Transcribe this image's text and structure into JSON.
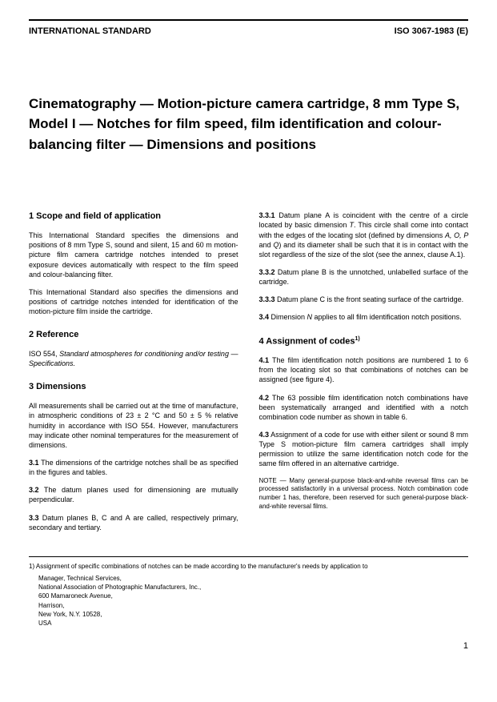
{
  "header": {
    "left": "INTERNATIONAL STANDARD",
    "right": "ISO 3067-1983 (E)"
  },
  "title": "Cinematography — Motion-picture camera cartridge, 8 mm Type S, Model I — Notches for film speed, film identification and colour-balancing filter — Dimensions and positions",
  "left": {
    "s1_heading": "1   Scope and field of application",
    "s1_p1": "This International Standard specifies the dimensions and positions of 8 mm Type S, sound and silent, 15 and 60 m motion-picture film camera cartridge notches intended to preset exposure devices automatically with respect to the film speed and colour-balancing filter.",
    "s1_p2": "This International Standard also specifies the dimensions and positions of cartridge notches intended for identification of the motion-picture film inside the cartridge.",
    "s2_heading": "2   Reference",
    "s2_p1a": "ISO 554, ",
    "s2_p1b": "Standard atmospheres for conditioning and/or testing — Specifications.",
    "s3_heading": "3   Dimensions",
    "s3_p1": "All measurements shall be carried out at the time of manufacture, in atmospheric conditions of 23 ± 2 °C and 50 ± 5 % relative humidity in accordance with ISO 554. However, manufacturers may indicate other nominal temperatures for the measurement of dimensions.",
    "s3_1_lead": "3.1",
    "s3_1": "   The dimensions of the cartridge notches shall be as specified in the figures and tables.",
    "s3_2_lead": "3.2",
    "s3_2": "   The datum planes used for dimensioning are mutually perpendicular.",
    "s3_3_lead": "3.3",
    "s3_3": "   Datum planes B, C and A are called, respectively primary, secondary and tertiary."
  },
  "right": {
    "s3_3_1_lead": "3.3.1",
    "s3_3_1a": "   Datum plane A is coincident with the centre of a circle located by basic dimension ",
    "s3_3_1b": ". This circle shall come into contact with the edges of the locating slot (defined by dimensions ",
    "s3_3_1c": ") and its diameter shall be such that it is in contact with the slot regardless of the size of the slot (see the annex, clause A.1).",
    "s3_3_2_lead": "3.3.2",
    "s3_3_2": "   Datum plane B is the unnotched, unlabelled surface of the cartridge.",
    "s3_3_3_lead": "3.3.3",
    "s3_3_3": "   Datum plane C is the front seating surface of the cartridge.",
    "s3_4_lead": "3.4",
    "s3_4a": "   Dimension ",
    "s3_4b": " applies to all film identification notch positions.",
    "s4_heading_a": "4   Assignment of codes",
    "s4_heading_sup": "1)",
    "s4_1_lead": "4.1",
    "s4_1": "   The film identification notch positions are numbered 1 to 6 from the locating slot so that combinations of notches can be assigned (see figure 4).",
    "s4_2_lead": "4.2",
    "s4_2": "   The 63 possible film identification notch combinations have been systematically arranged and identified with a notch combination code number as shown in table 6.",
    "s4_3_lead": "4.3",
    "s4_3": "   Assignment of a code for use with either silent or sound 8 mm Type S motion-picture film camera cartridges shall imply permission to utilize the same identification notch code for the same film offered in an alternative cartridge.",
    "note": "NOTE — Many general-purpose black-and-white reversal films can be processed satisfactorily in a universal process. Notch combination code number 1 has, therefore, been reserved for such general-purpose black-and-white reversal films."
  },
  "footnote": {
    "text": "1)   Assignment of specific combinations of notches can be made according to the manufacturer's needs by application to",
    "a1": "Manager, Technical Services,",
    "a2": "National Association of Photographic Manufacturers, Inc.,",
    "a3": "600 Mamaroneck Avenue,",
    "a4": "Harrison,",
    "a5": "New York, N.Y. 10528,",
    "a6": "USA"
  },
  "pagenum": "1"
}
